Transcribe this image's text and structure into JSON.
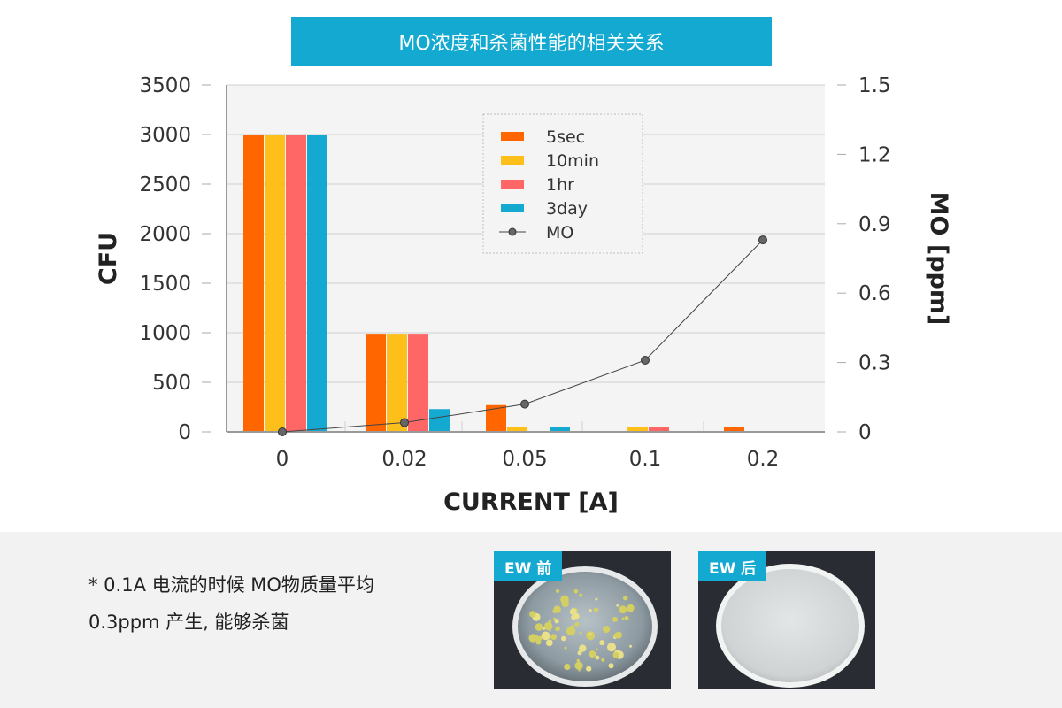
{
  "chart_data": {
    "type": "bar",
    "title": "MO浓度和杀菌性能的相关关系",
    "xlabel": "CURRENT [A]",
    "ylabel": "CFU",
    "y2label": "MO [ppm]",
    "categories": [
      "0",
      "0.02",
      "0.05",
      "0.1",
      "0.2"
    ],
    "ylim": [
      0,
      3500
    ],
    "y2lim": [
      0,
      1.5
    ],
    "yticks": [
      0,
      500,
      1000,
      1500,
      2000,
      2500,
      3000,
      3500
    ],
    "y2ticks": [
      0,
      0.3,
      0.6,
      0.9,
      1.2,
      1.5
    ],
    "grid": true,
    "legend_position": "top-center",
    "series": [
      {
        "name": "5sec",
        "type": "bar",
        "color": "#ff6600",
        "values": [
          3000,
          990,
          270,
          0,
          50
        ]
      },
      {
        "name": "10min",
        "type": "bar",
        "color": "#ffbf1a",
        "values": [
          3000,
          990,
          50,
          50,
          0
        ]
      },
      {
        "name": "1hr",
        "type": "bar",
        "color": "#ff6666",
        "values": [
          3000,
          990,
          0,
          50,
          0
        ]
      },
      {
        "name": "3day",
        "type": "bar",
        "color": "#14a9d0",
        "values": [
          3000,
          230,
          50,
          0,
          0
        ]
      },
      {
        "name": "MO",
        "type": "line",
        "axis": "right",
        "color": "#555555",
        "values": [
          0,
          0.04,
          0.12,
          0.31,
          0.83
        ]
      }
    ]
  },
  "note": {
    "line1": "* 0.1A 电流的时候  MO物质量平均",
    "line2": "0.3ppm 产生,  能够杀菌"
  },
  "photos": {
    "before_label": "EW 前",
    "after_label": "EW 后"
  }
}
